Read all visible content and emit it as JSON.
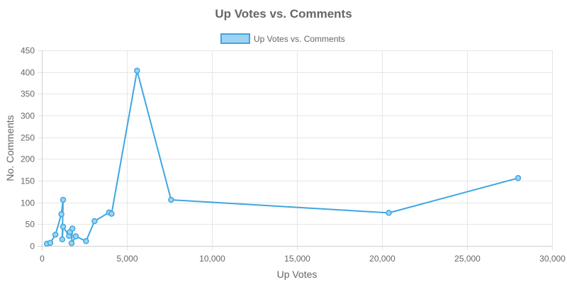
{
  "chart_data": {
    "type": "line",
    "title": "Up Votes vs. Comments",
    "xlabel": "Up Votes",
    "ylabel": "No. Comments",
    "xlim": [
      0,
      30000
    ],
    "ylim": [
      0,
      450
    ],
    "x_ticks": [
      0,
      5000,
      10000,
      15000,
      20000,
      25000,
      30000
    ],
    "x_tick_labels": [
      "0",
      "5,000",
      "10,000",
      "15,000",
      "20,000",
      "25,000",
      "30,000"
    ],
    "y_ticks": [
      0,
      50,
      100,
      150,
      200,
      250,
      300,
      350,
      400,
      450
    ],
    "y_tick_labels": [
      "0",
      "50",
      "100",
      "150",
      "200",
      "250",
      "300",
      "350",
      "400",
      "450"
    ],
    "grid": true,
    "legend_position": "top",
    "series": [
      {
        "name": "Up Votes vs. Comments",
        "color": "#3ea6e2",
        "fill_color": "#9fd3f1",
        "points": [
          {
            "x": 300,
            "y": 5
          },
          {
            "x": 500,
            "y": 7
          },
          {
            "x": 800,
            "y": 26
          },
          {
            "x": 1150,
            "y": 73
          },
          {
            "x": 1250,
            "y": 106
          },
          {
            "x": 1200,
            "y": 15
          },
          {
            "x": 1250,
            "y": 44
          },
          {
            "x": 1600,
            "y": 23
          },
          {
            "x": 1650,
            "y": 32
          },
          {
            "x": 1800,
            "y": 40
          },
          {
            "x": 1750,
            "y": 6
          },
          {
            "x": 2000,
            "y": 22
          },
          {
            "x": 2600,
            "y": 11
          },
          {
            "x": 3100,
            "y": 57
          },
          {
            "x": 3950,
            "y": 77
          },
          {
            "x": 4100,
            "y": 74
          },
          {
            "x": 5600,
            "y": 403
          },
          {
            "x": 7600,
            "y": 106
          },
          {
            "x": 20400,
            "y": 76
          },
          {
            "x": 28000,
            "y": 156
          }
        ]
      }
    ]
  }
}
